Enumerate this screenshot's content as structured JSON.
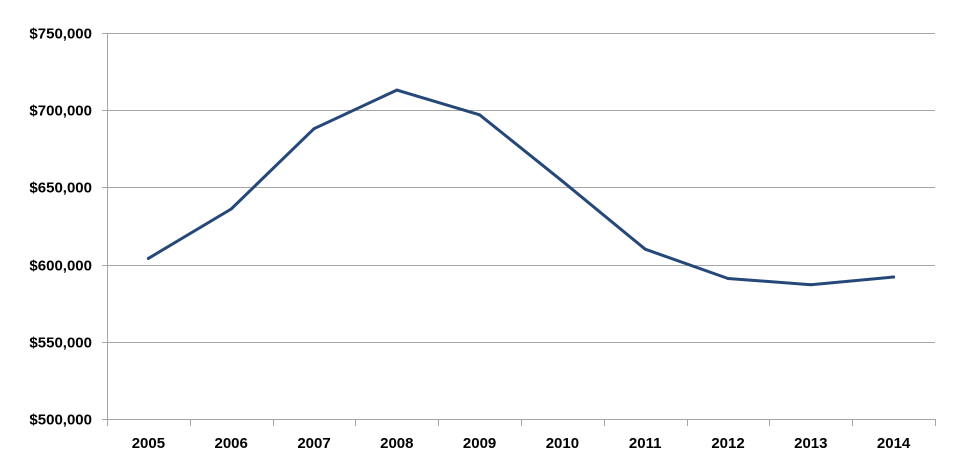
{
  "chart_data": {
    "type": "line",
    "title": "",
    "xlabel": "",
    "ylabel": "",
    "categories": [
      "2005",
      "2006",
      "2007",
      "2008",
      "2009",
      "2010",
      "2011",
      "2012",
      "2013",
      "2014"
    ],
    "series": [
      {
        "values": [
          604000,
          636000,
          688000,
          713000,
          697000,
          654000,
          610000,
          591000,
          587000,
          592000
        ],
        "color": "#254878"
      }
    ],
    "ylim": [
      500000,
      750000
    ],
    "y_ticks": [
      500000,
      550000,
      600000,
      650000,
      700000,
      750000
    ],
    "y_tick_labels": [
      "$500,000",
      "$550,000",
      "$600,000",
      "$650,000",
      "$700,000",
      "$750,000"
    ],
    "grid": "horizontal",
    "legend": "none"
  }
}
